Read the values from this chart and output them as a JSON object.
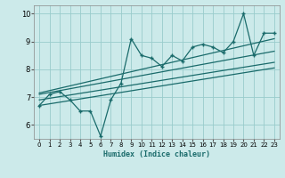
{
  "title": "",
  "xlabel": "Humidex (Indice chaleur)",
  "ylabel": "",
  "bg_color": "#cceaea",
  "grid_color": "#99cccc",
  "line_color": "#1a6b6b",
  "x_values": [
    0,
    1,
    2,
    3,
    4,
    5,
    6,
    7,
    8,
    9,
    10,
    11,
    12,
    13,
    14,
    15,
    16,
    17,
    18,
    19,
    20,
    21,
    22,
    23
  ],
  "y_main": [
    6.7,
    7.1,
    7.2,
    6.9,
    6.5,
    6.5,
    5.6,
    6.9,
    7.5,
    9.1,
    8.5,
    8.4,
    8.1,
    8.5,
    8.3,
    8.8,
    8.9,
    8.8,
    8.6,
    9.0,
    10.0,
    8.5,
    9.3,
    9.3
  ],
  "trend_lines": [
    [
      6.7,
      8.05
    ],
    [
      6.9,
      8.25
    ],
    [
      7.1,
      8.65
    ],
    [
      7.15,
      9.1
    ]
  ],
  "ylim": [
    5.5,
    10.3
  ],
  "xlim": [
    -0.5,
    23.5
  ],
  "yticks": [
    6,
    7,
    8,
    9,
    10
  ],
  "xticks": [
    0,
    1,
    2,
    3,
    4,
    5,
    6,
    7,
    8,
    9,
    10,
    11,
    12,
    13,
    14,
    15,
    16,
    17,
    18,
    19,
    20,
    21,
    22,
    23
  ]
}
